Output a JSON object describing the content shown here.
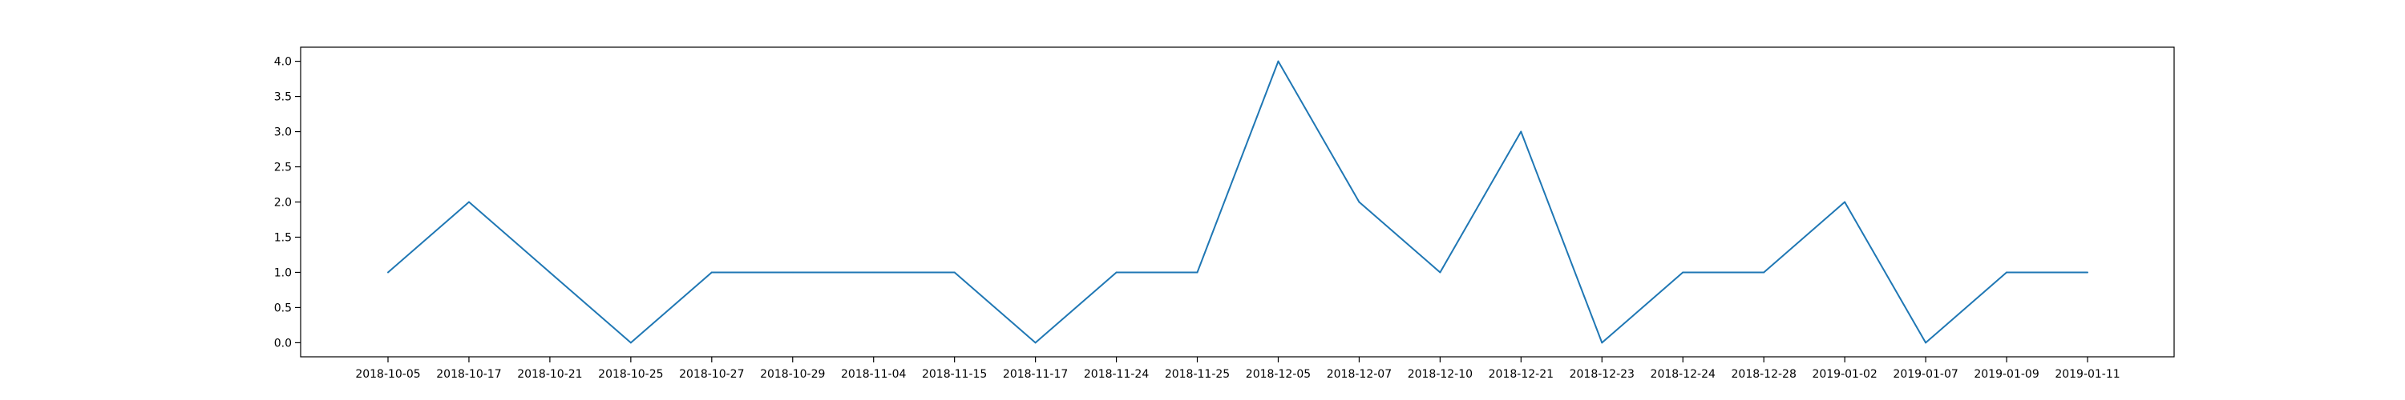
{
  "chart_data": {
    "type": "line",
    "title": "",
    "xlabel": "",
    "ylabel": "",
    "categories": [
      "2018-10-05",
      "2018-10-17",
      "2018-10-21",
      "2018-10-25",
      "2018-10-27",
      "2018-10-29",
      "2018-11-04",
      "2018-11-15",
      "2018-11-17",
      "2018-11-24",
      "2018-11-25",
      "2018-12-05",
      "2018-12-07",
      "2018-12-10",
      "2018-12-21",
      "2018-12-23",
      "2018-12-24",
      "2018-12-28",
      "2019-01-02",
      "2019-01-07",
      "2019-01-09",
      "2019-01-11"
    ],
    "series": [
      {
        "values": [
          1,
          2,
          1,
          0,
          1,
          1,
          1,
          1,
          0,
          1,
          1,
          4,
          2,
          1,
          3,
          0,
          1,
          1,
          2,
          0,
          1,
          1
        ],
        "color": "#1f77b4"
      }
    ],
    "yticks": [
      "0.0",
      "0.5",
      "1.0",
      "1.5",
      "2.0",
      "2.5",
      "3.0",
      "3.5",
      "4.0"
    ],
    "ylim": [
      -0.2,
      4.2
    ],
    "grid": false,
    "legend": "none"
  }
}
